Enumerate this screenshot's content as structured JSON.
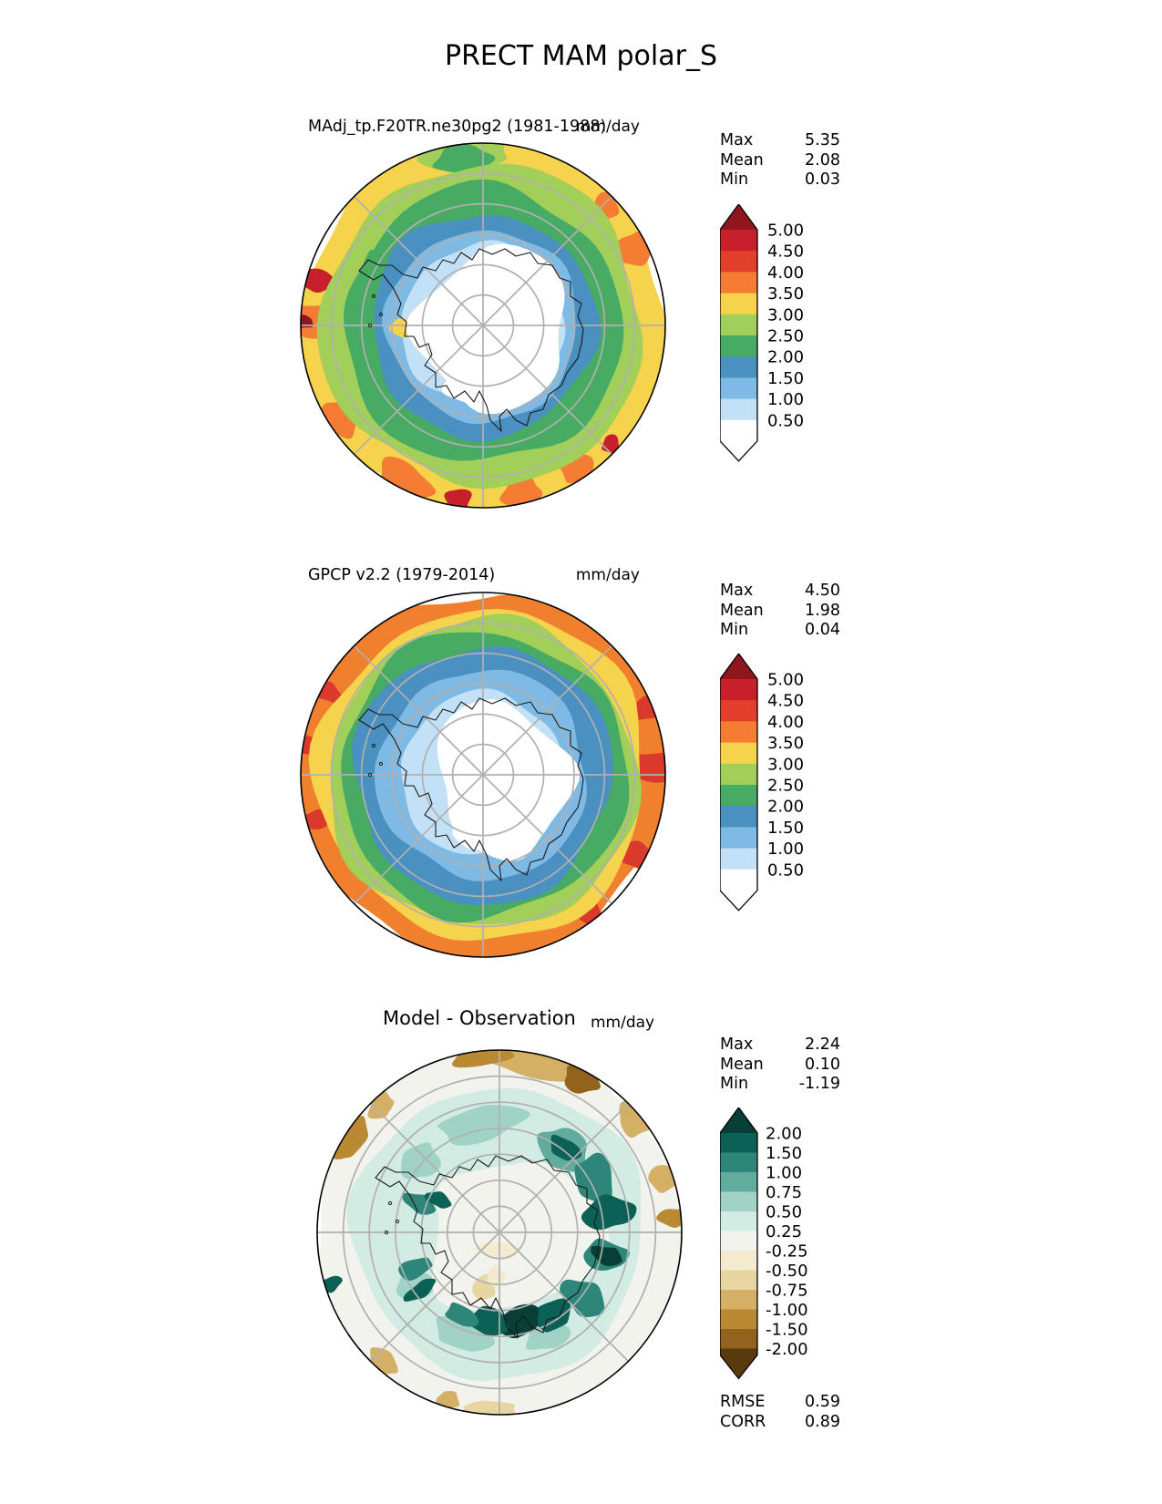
{
  "title": "PRECT MAM polar_S",
  "chart_data": {
    "type": "heatmap",
    "kind": "polar-stereographic-precipitation-contour-maps-south",
    "variable": "PRECT",
    "season": "MAM",
    "region": "polar_S",
    "panels": [
      {
        "key": "model",
        "title": "MAdj_tp.F20TR.ne30pg2 (1981-1988)",
        "units": "mm/day",
        "stats": [
          {
            "label": "Max",
            "value": "5.35"
          },
          {
            "label": "Mean",
            "value": "2.08"
          },
          {
            "label": "Min",
            "value": "0.03"
          }
        ],
        "colorbar": {
          "labels": [
            "5.00",
            "4.50",
            "4.00",
            "3.50",
            "3.00",
            "2.50",
            "2.00",
            "1.50",
            "1.00",
            "0.50"
          ],
          "band_colors": [
            "#8f161c",
            "#c8202a",
            "#e2402c",
            "#f47d33",
            "#f6d34c",
            "#a2ce5a",
            "#47ab63",
            "#4a90c0",
            "#7fbae4",
            "#c3e1f6",
            "#ffffff"
          ]
        }
      },
      {
        "key": "observation",
        "title": "GPCP v2.2 (1979-2014)",
        "units": "mm/day",
        "stats": [
          {
            "label": "Max",
            "value": "4.50"
          },
          {
            "label": "Mean",
            "value": "1.98"
          },
          {
            "label": "Min",
            "value": "0.04"
          }
        ],
        "colorbar": {
          "labels": [
            "5.00",
            "4.50",
            "4.00",
            "3.50",
            "3.00",
            "2.50",
            "2.00",
            "1.50",
            "1.00",
            "0.50"
          ],
          "band_colors": [
            "#8f161c",
            "#c8202a",
            "#e2402c",
            "#f47d33",
            "#f6d34c",
            "#a2ce5a",
            "#47ab63",
            "#4a90c0",
            "#7fbae4",
            "#c3e1f6",
            "#ffffff"
          ]
        }
      },
      {
        "key": "difference",
        "title": "Model - Observation",
        "units": "mm/day",
        "stats": [
          {
            "label": "Max",
            "value": "2.24"
          },
          {
            "label": "Mean",
            "value": "0.10"
          },
          {
            "label": "Min",
            "value": "-1.19"
          }
        ],
        "extra_stats": [
          {
            "label": "RMSE",
            "value": "0.59"
          },
          {
            "label": "CORR",
            "value": "0.89"
          }
        ],
        "colorbar": {
          "labels": [
            "2.00",
            "1.50",
            "1.00",
            "0.75",
            "0.50",
            "0.25",
            "-0.25",
            "-0.50",
            "-0.75",
            "-1.00",
            "-1.50",
            "-2.00"
          ],
          "band_colors": [
            "#073f36",
            "#0b6156",
            "#2e857a",
            "#62ac9d",
            "#a0d3c6",
            "#d2ebe3",
            "#f2f3ed",
            "#f4ebcf",
            "#e8d6a2",
            "#d3b066",
            "#ba8a33",
            "#93621d",
            "#593a0f"
          ]
        }
      }
    ],
    "graticule_color": "#b0b0b0",
    "coast_color": "#1a1a1a",
    "coast": [
      [
        -0.68,
        -0.3
      ],
      [
        -0.6,
        -0.25
      ],
      [
        -0.55,
        -0.28
      ],
      [
        -0.49,
        -0.2
      ],
      [
        -0.45,
        -0.12
      ],
      [
        -0.47,
        -0.06
      ],
      [
        -0.42,
        -0.02
      ],
      [
        -0.43,
        0.06
      ],
      [
        -0.38,
        0.06
      ],
      [
        -0.35,
        0.12
      ],
      [
        -0.3,
        0.1
      ],
      [
        -0.28,
        0.16
      ],
      [
        -0.32,
        0.22
      ],
      [
        -0.26,
        0.26
      ],
      [
        -0.26,
        0.34
      ],
      [
        -0.2,
        0.33
      ],
      [
        -0.16,
        0.4
      ],
      [
        -0.1,
        0.36
      ],
      [
        -0.05,
        0.42
      ],
      [
        -0.02,
        0.36
      ],
      [
        0.02,
        0.44
      ],
      [
        0.04,
        0.52
      ],
      [
        0.1,
        0.58
      ],
      [
        0.09,
        0.5
      ],
      [
        0.13,
        0.46
      ],
      [
        0.18,
        0.52
      ],
      [
        0.24,
        0.55
      ],
      [
        0.26,
        0.48
      ],
      [
        0.33,
        0.46
      ],
      [
        0.36,
        0.38
      ],
      [
        0.43,
        0.33
      ],
      [
        0.46,
        0.26
      ],
      [
        0.52,
        0.18
      ],
      [
        0.54,
        0.1
      ],
      [
        0.55,
        0.02
      ],
      [
        0.52,
        -0.05
      ],
      [
        0.54,
        -0.12
      ],
      [
        0.48,
        -0.16
      ],
      [
        0.48,
        -0.24
      ],
      [
        0.42,
        -0.26
      ],
      [
        0.38,
        -0.33
      ],
      [
        0.3,
        -0.34
      ],
      [
        0.26,
        -0.4
      ],
      [
        0.18,
        -0.38
      ],
      [
        0.12,
        -0.42
      ],
      [
        0.05,
        -0.39
      ],
      [
        -0.02,
        -0.42
      ],
      [
        -0.06,
        -0.36
      ],
      [
        -0.12,
        -0.4
      ],
      [
        -0.16,
        -0.34
      ],
      [
        -0.22,
        -0.36
      ],
      [
        -0.26,
        -0.3
      ],
      [
        -0.33,
        -0.32
      ],
      [
        -0.36,
        -0.26
      ],
      [
        -0.44,
        -0.28
      ],
      [
        -0.5,
        -0.33
      ],
      [
        -0.57,
        -0.33
      ],
      [
        -0.63,
        -0.36
      ],
      [
        -0.68,
        -0.3
      ]
    ],
    "islands": [
      [
        -0.6,
        -0.16
      ],
      [
        -0.56,
        -0.06
      ],
      [
        -0.62,
        0.0
      ]
    ],
    "maps": [
      {
        "grat": [
          0.167,
          0.333,
          0.5,
          0.667,
          0.833
        ],
        "layers": [
          {
            "ring": 1.02,
            "c": "#f6d34c"
          },
          {
            "a": 178,
            "r": 0.94,
            "rx": 0.09,
            "ry": 0.2,
            "c": "#f47d33"
          },
          {
            "a": 165,
            "r": 0.97,
            "rx": 0.06,
            "ry": 0.12,
            "c": "#c8202a"
          },
          {
            "a": 179,
            "r": 0.985,
            "rx": 0.035,
            "ry": 0.06,
            "c": "#8f161c"
          },
          {
            "a": 213,
            "r": 0.93,
            "rx": 0.11,
            "ry": 0.09,
            "c": "#f47d33"
          },
          {
            "a": 243,
            "r": 0.95,
            "rx": 0.16,
            "ry": 0.09,
            "c": "#f47d33"
          },
          {
            "a": 262,
            "r": 0.96,
            "rx": 0.07,
            "ry": 0.06,
            "c": "#c8202a"
          },
          {
            "a": 283,
            "r": 0.94,
            "rx": 0.11,
            "ry": 0.08,
            "c": "#f47d33"
          },
          {
            "a": 303,
            "r": 0.93,
            "rx": 0.09,
            "ry": 0.09,
            "c": "#f47d33"
          },
          {
            "a": 317,
            "r": 0.96,
            "rx": 0.05,
            "ry": 0.05,
            "c": "#c8202a"
          },
          {
            "a": 27,
            "r": 0.94,
            "rx": 0.09,
            "ry": 0.11,
            "c": "#f47d33"
          },
          {
            "a": 44,
            "r": 0.93,
            "rx": 0.07,
            "ry": 0.08,
            "c": "#f47d33"
          },
          {
            "a": 95,
            "r": 0.94,
            "rx": 0.24,
            "ry": 0.09,
            "c": "#a2ce5a"
          },
          {
            "a": 97,
            "r": 0.92,
            "rx": 0.16,
            "ry": 0.07,
            "c": "#47ab63"
          },
          {
            "ring": 0.88,
            "c": "#a2ce5a"
          },
          {
            "ring": 0.76,
            "c": "#47ab63"
          },
          {
            "ring": 0.615,
            "c": "#4a90c0"
          },
          {
            "ring": 0.525,
            "c": "#7fbae4"
          },
          {
            "ring": 0.445,
            "c": "#c3e1f6"
          },
          {
            "a": 181,
            "r": 0.42,
            "rx": 0.05,
            "ry": 0.09,
            "c": "#f6d34c"
          },
          {
            "a": 150,
            "r": 0.7,
            "rx": 0.08,
            "ry": 0.05,
            "c": "#47ab63"
          },
          {
            "x": 0.07,
            "y": 0.02,
            "rx": 0.42,
            "ry": 0.4,
            "c": "#ffffff"
          },
          {
            "x": -0.04,
            "y": 0.32,
            "rx": 0.17,
            "ry": 0.13,
            "c": "#ffffff"
          }
        ]
      },
      {
        "grat": [
          0.167,
          0.333,
          0.5,
          0.667,
          0.833
        ],
        "layers": [
          {
            "ring": 1.02,
            "c": "#f0802e"
          },
          {
            "a": 3,
            "r": 0.95,
            "rx": 0.08,
            "ry": 0.18,
            "c": "#d93a2b"
          },
          {
            "a": 22,
            "r": 0.96,
            "rx": 0.06,
            "ry": 0.1,
            "c": "#d93a2b"
          },
          {
            "a": -28,
            "r": 0.95,
            "rx": 0.07,
            "ry": 0.12,
            "c": "#d93a2b"
          },
          {
            "a": -52,
            "r": 0.96,
            "rx": 0.06,
            "ry": 0.09,
            "c": "#d93a2b"
          },
          {
            "a": 152,
            "r": 0.96,
            "rx": 0.05,
            "ry": 0.08,
            "c": "#d93a2b"
          },
          {
            "a": 170,
            "r": 0.97,
            "rx": 0.05,
            "ry": 0.1,
            "c": "#d93a2b"
          },
          {
            "a": 195,
            "r": 0.96,
            "rx": 0.05,
            "ry": 0.09,
            "c": "#d93a2b"
          },
          {
            "ring": 0.905,
            "c": "#f6d34c"
          },
          {
            "ring": 0.845,
            "c": "#a2ce5a"
          },
          {
            "ring": 0.785,
            "c": "#47ab63"
          },
          {
            "ring": 0.705,
            "c": "#4a90c0"
          },
          {
            "ring": 0.575,
            "c": "#7fbae4"
          },
          {
            "ring": 0.45,
            "c": "#c3e1f6"
          },
          {
            "x": 0.1,
            "y": 0.03,
            "rx": 0.37,
            "ry": 0.39,
            "c": "#ffffff"
          },
          {
            "x": -0.02,
            "y": -0.18,
            "rx": 0.14,
            "ry": 0.12,
            "c": "#ffffff"
          },
          {
            "x": -0.03,
            "y": 0.3,
            "rx": 0.12,
            "ry": 0.1,
            "c": "#ffffff"
          }
        ]
      },
      {
        "grat": [
          0.143,
          0.286,
          0.429,
          0.571,
          0.714,
          0.857
        ],
        "layers": [
          {
            "ring": 1.02,
            "c": "#f2f3ed"
          },
          {
            "a": 80,
            "r": 0.95,
            "rx": 0.28,
            "ry": 0.08,
            "c": "#d3b066"
          },
          {
            "a": 96,
            "r": 0.97,
            "rx": 0.16,
            "ry": 0.06,
            "c": "#ba8a33"
          },
          {
            "a": 62,
            "r": 0.95,
            "rx": 0.1,
            "ry": 0.07,
            "c": "#93621d"
          },
          {
            "a": 40,
            "r": 0.96,
            "rx": 0.1,
            "ry": 0.08,
            "c": "#d3b066"
          },
          {
            "a": 18,
            "r": 0.96,
            "rx": 0.07,
            "ry": 0.1,
            "c": "#d3b066"
          },
          {
            "a": 5,
            "r": 0.97,
            "rx": 0.05,
            "ry": 0.09,
            "c": "#ba8a33"
          },
          {
            "a": 148,
            "r": 0.955,
            "rx": 0.13,
            "ry": 0.07,
            "c": "#ba8a33"
          },
          {
            "a": 133,
            "r": 0.95,
            "rx": 0.08,
            "ry": 0.06,
            "c": "#d3b066"
          },
          {
            "a": 228,
            "r": 0.96,
            "rx": 0.09,
            "ry": 0.06,
            "c": "#d3b066"
          },
          {
            "a": 268,
            "r": 0.97,
            "rx": 0.14,
            "ry": 0.05,
            "c": "#e8d6a2"
          },
          {
            "a": 253,
            "r": 0.96,
            "rx": 0.06,
            "ry": 0.05,
            "c": "#d3b066"
          },
          {
            "a": 197,
            "r": 0.98,
            "rx": 0.04,
            "ry": 0.07,
            "c": "#0b6156"
          },
          {
            "ring": 0.8,
            "c": "#d2ebe3"
          },
          {
            "a": 100,
            "r": 0.6,
            "rx": 0.24,
            "ry": 0.09,
            "c": "#a0d3c6"
          },
          {
            "a": 138,
            "r": 0.58,
            "rx": 0.11,
            "ry": 0.09,
            "c": "#a0d3c6"
          },
          {
            "a": 250,
            "r": 0.6,
            "rx": 0.16,
            "ry": 0.09,
            "c": "#a0d3c6"
          },
          {
            "a": 212,
            "r": 0.55,
            "rx": 0.09,
            "ry": 0.09,
            "c": "#a0d3c6"
          },
          {
            "a": 295,
            "r": 0.62,
            "rx": 0.12,
            "ry": 0.08,
            "c": "#a0d3c6"
          },
          {
            "x": 0.05,
            "y": 0.02,
            "rx": 0.47,
            "ry": 0.46,
            "c": "#f2f3ed"
          },
          {
            "a": 52,
            "r": 0.58,
            "rx": 0.15,
            "ry": 0.1,
            "c": "#62ac9d"
          },
          {
            "a": 30,
            "r": 0.6,
            "rx": 0.13,
            "ry": 0.11,
            "c": "#2e857a"
          },
          {
            "a": 52,
            "r": 0.58,
            "rx": 0.09,
            "ry": 0.06,
            "c": "#0b6156"
          },
          {
            "a": 10,
            "r": 0.61,
            "rx": 0.09,
            "ry": 0.13,
            "c": "#0b6156"
          },
          {
            "a": -12,
            "r": 0.6,
            "rx": 0.08,
            "ry": 0.13,
            "c": "#2e857a"
          },
          {
            "a": -12,
            "r": 0.6,
            "rx": 0.05,
            "ry": 0.09,
            "c": "#073f36"
          },
          {
            "a": -38,
            "r": 0.58,
            "rx": 0.09,
            "ry": 0.12,
            "c": "#2e857a"
          },
          {
            "a": -58,
            "r": 0.54,
            "rx": 0.11,
            "ry": 0.09,
            "c": "#0b6156"
          },
          {
            "a": -78,
            "r": 0.5,
            "rx": 0.13,
            "ry": 0.08,
            "c": "#073f36"
          },
          {
            "a": -97,
            "r": 0.49,
            "rx": 0.11,
            "ry": 0.07,
            "c": "#0b6156"
          },
          {
            "a": -115,
            "r": 0.5,
            "rx": 0.09,
            "ry": 0.06,
            "c": "#2e857a"
          },
          {
            "a": 160,
            "r": 0.47,
            "rx": 0.05,
            "ry": 0.09,
            "c": "#2e857a"
          },
          {
            "a": 152,
            "r": 0.38,
            "rx": 0.04,
            "ry": 0.07,
            "c": "#0b6156"
          },
          {
            "a": 203,
            "r": 0.5,
            "rx": 0.05,
            "ry": 0.11,
            "c": "#2e857a"
          },
          {
            "a": 216,
            "r": 0.54,
            "rx": 0.04,
            "ry": 0.09,
            "c": "#0b6156"
          },
          {
            "x": 0.0,
            "y": 0.1,
            "rx": 0.12,
            "ry": 0.045,
            "c": "#f4ebcf"
          },
          {
            "x": -0.08,
            "y": 0.3,
            "rx": 0.06,
            "ry": 0.08,
            "c": "#e8d6a2"
          },
          {
            "x": -0.02,
            "y": 0.24,
            "rx": 0.05,
            "ry": 0.05,
            "c": "#f4ebcf"
          }
        ]
      }
    ]
  }
}
